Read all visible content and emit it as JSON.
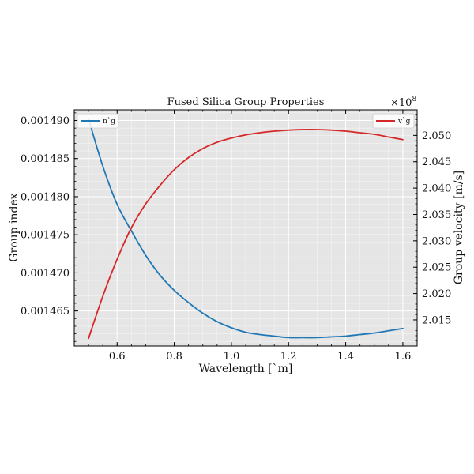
{
  "chart_data": {
    "type": "line",
    "title": "Fused Silica Group Properties",
    "xlabel": "Wavelength [`m]",
    "ylabel_left": "Group index",
    "ylabel_right": "Group velocity [m/s]",
    "right_axis_multiplier": "×10",
    "right_axis_exponent": "8",
    "xlim": [
      0.45,
      1.65
    ],
    "ylim_left": [
      0.0014604,
      0.0014914
    ],
    "ylim_right": [
      2.01005,
      2.05485
    ],
    "x_ticks": [
      0.6,
      0.8,
      1.0,
      1.2,
      1.4,
      1.6
    ],
    "x_tick_labels": [
      "0.6",
      "0.8",
      "1.0",
      "1.2",
      "1.4",
      "1.6"
    ],
    "y_ticks_left": [
      0.001465,
      0.00147,
      0.001475,
      0.00148,
      0.001485,
      0.00149
    ],
    "y_tick_labels_left": [
      "0.001465",
      "0.001470",
      "0.001475",
      "0.001480",
      "0.001485",
      "0.001490"
    ],
    "y_ticks_right": [
      2.015,
      2.02,
      2.025,
      2.03,
      2.035,
      2.04,
      2.045,
      2.05
    ],
    "y_tick_labels_right": [
      "2.015",
      "2.020",
      "2.025",
      "2.030",
      "2.035",
      "2.040",
      "2.045",
      "2.050"
    ],
    "grid": true,
    "legend_left": "top-left",
    "legend_right": "top-right",
    "series": [
      {
        "name": "n`g",
        "axis": "left",
        "color": "#1f77b4",
        "x": [
          0.5,
          0.55,
          0.6,
          0.65,
          0.7,
          0.75,
          0.8,
          0.85,
          0.9,
          0.95,
          1.0,
          1.05,
          1.1,
          1.15,
          1.2,
          1.25,
          1.3,
          1.35,
          1.4,
          1.45,
          1.5,
          1.55,
          1.6
        ],
        "y": [
          0.0014902,
          0.001484,
          0.001479,
          0.0014755,
          0.0014723,
          0.0014697,
          0.0014677,
          0.0014661,
          0.0014647,
          0.0014636,
          0.0014628,
          0.0014622,
          0.0014619,
          0.0014617,
          0.0014615,
          0.0014615,
          0.0014615,
          0.0014616,
          0.0014617,
          0.0014619,
          0.0014621,
          0.0014624,
          0.0014627
        ]
      },
      {
        "name": "v`g",
        "axis": "right",
        "color": "#d62728",
        "x": [
          0.5,
          0.55,
          0.6,
          0.65,
          0.7,
          0.75,
          0.8,
          0.85,
          0.9,
          0.95,
          1.0,
          1.05,
          1.1,
          1.15,
          1.2,
          1.25,
          1.3,
          1.35,
          1.4,
          1.45,
          1.5,
          1.55,
          1.6
        ],
        "y": [
          2.0115,
          2.0195,
          2.0265,
          2.0325,
          2.037,
          2.0405,
          2.0435,
          2.0458,
          2.0475,
          2.0487,
          2.0495,
          2.0501,
          2.0505,
          2.0508,
          2.051,
          2.0511,
          2.0511,
          2.051,
          2.0508,
          2.0505,
          2.0502,
          2.0497,
          2.0492
        ]
      }
    ]
  }
}
